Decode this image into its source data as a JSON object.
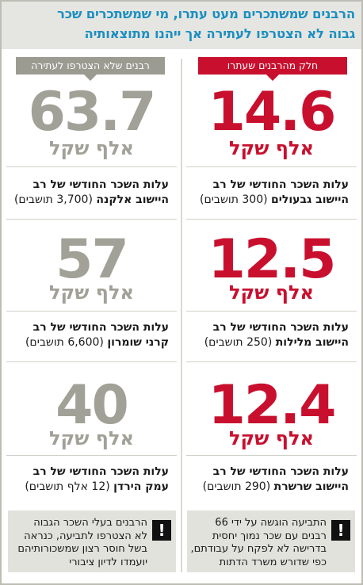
{
  "header": {
    "line1": "הרבנים שמשתכרים מעט עתרו, מי שמשתכרים שכר",
    "line2": "גבוה לא הצטרפו לעתירה אך ייהנו מתוצאותיה"
  },
  "right_column": {
    "label": "חלק מהרבנים שעתרו",
    "entries": [
      {
        "value": "14.6",
        "unit": "אלף שקל",
        "desc_line1": "עלות השכר החודשי של רב",
        "desc_line2_bold": "היישוב גבעולים",
        "desc_line2_plain": "(300 תושבים)"
      },
      {
        "value": "12.5",
        "unit": "אלף שקל",
        "desc_line1": "עלות השכר החודשי של רב",
        "desc_line2_bold": "היישוב מלילות",
        "desc_line2_plain": "(250 תושבים)"
      },
      {
        "value": "12.4",
        "unit": "אלף שקל",
        "desc_line1": "עלות השכר החודשי של רב",
        "desc_line2_bold": "היישוב שרשרת",
        "desc_line2_plain": "(290 תושבים)"
      }
    ],
    "note": {
      "lines": [
        "התביעה הוגשה על ידי 66",
        "רבנים עם שכר נמוך יחסית",
        "בדרישה לא לפקח על עבודתם,",
        "כפי שדורש משרד הדתות"
      ]
    }
  },
  "left_column": {
    "label": "רבנים שלא הצטרפו לעתירה",
    "entries": [
      {
        "value": "63.7",
        "unit": "אלף שקל",
        "desc_line1": "עלות השכר החודשי של רב",
        "desc_line2_bold": "היישוב אלקנה",
        "desc_line2_plain": "(3,700 תושבים)"
      },
      {
        "value": "57",
        "unit": "אלף שקל",
        "desc_line1": "עלות השכר החודשי של רב",
        "desc_line2_bold": "קרני שומרון",
        "desc_line2_plain": "(6,600 תושבים)"
      },
      {
        "value": "40",
        "unit": "אלף שקל",
        "desc_line1": "עלות השכר החודשי של רב",
        "desc_line2_bold": "עמק הירדן",
        "desc_line2_plain": "(12 אלף תושבים)"
      }
    ],
    "note": {
      "lines": [
        "הרבנים בעלי השכר הגבוה",
        "לא הצטרפו לתביעה, כנראה",
        "בשל חוסר רצון שמשכורותיהם",
        "יועמדו לדיון ציבורי"
      ]
    }
  },
  "icons": {
    "alert": "!"
  },
  "colors": {
    "accent_blue": "#1b8fc1",
    "red": "#c8102e",
    "gray": "#a2a198"
  }
}
